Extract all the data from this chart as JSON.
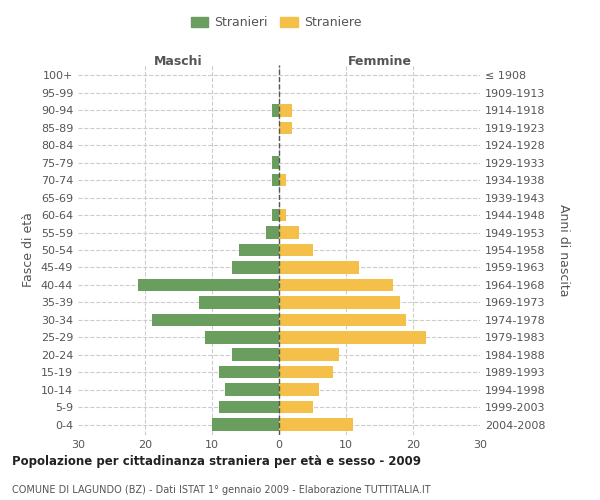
{
  "age_groups": [
    "0-4",
    "5-9",
    "10-14",
    "15-19",
    "20-24",
    "25-29",
    "30-34",
    "35-39",
    "40-44",
    "45-49",
    "50-54",
    "55-59",
    "60-64",
    "65-69",
    "70-74",
    "75-79",
    "80-84",
    "85-89",
    "90-94",
    "95-99",
    "100+"
  ],
  "birth_years": [
    "2004-2008",
    "1999-2003",
    "1994-1998",
    "1989-1993",
    "1984-1988",
    "1979-1983",
    "1974-1978",
    "1969-1973",
    "1964-1968",
    "1959-1963",
    "1954-1958",
    "1949-1953",
    "1944-1948",
    "1939-1943",
    "1934-1938",
    "1929-1933",
    "1924-1928",
    "1919-1923",
    "1914-1918",
    "1909-1913",
    "≤ 1908"
  ],
  "maschi": [
    10,
    9,
    8,
    9,
    7,
    11,
    19,
    12,
    21,
    7,
    6,
    2,
    1,
    0,
    1,
    1,
    0,
    0,
    1,
    0,
    0
  ],
  "femmine": [
    11,
    5,
    6,
    8,
    9,
    22,
    19,
    18,
    17,
    12,
    5,
    3,
    1,
    0,
    1,
    0,
    0,
    2,
    2,
    0,
    0
  ],
  "male_color": "#6a9e5e",
  "female_color": "#f5c04a",
  "grid_color": "#cccccc",
  "center_line_color": "#555555",
  "title": "Popolazione per cittadinanza straniera per età e sesso - 2009",
  "subtitle": "COMUNE DI LAGUNDO (BZ) - Dati ISTAT 1° gennaio 2009 - Elaborazione TUTTITALIA.IT",
  "ylabel_left": "Fasce di età",
  "ylabel_right": "Anni di nascita",
  "xlabel_maschi": "Maschi",
  "xlabel_femmine": "Femmine",
  "legend_maschi": "Stranieri",
  "legend_femmine": "Straniere",
  "xlim": 30,
  "background_color": "#ffffff"
}
